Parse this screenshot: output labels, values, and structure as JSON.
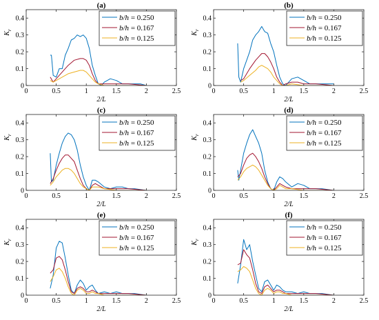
{
  "colors": {
    "s1": "#0072BD",
    "s2": "#A2142F",
    "s3": "#EDB120"
  },
  "chart_data": [
    {
      "type": "line",
      "title": "(a)",
      "xlabel": "2/L",
      "ylabel": "Kr",
      "xlim": [
        0,
        2.5
      ],
      "ylim": [
        0,
        0.45
      ],
      "xticks": [
        "0",
        "0.5",
        "1",
        "1.5",
        "2",
        "2.5"
      ],
      "yticks": [
        "0",
        "0.1",
        "0.2",
        "0.3",
        "0.4"
      ],
      "legend_position": "top-right",
      "series": [
        {
          "name": "b/h = 0.250",
          "color": "#0072BD",
          "x": [
            0.4,
            0.42,
            0.45,
            0.5,
            0.55,
            0.6,
            0.65,
            0.7,
            0.75,
            0.8,
            0.85,
            0.9,
            0.95,
            1.0,
            1.05,
            1.1,
            1.15,
            1.2,
            1.25,
            1.3,
            1.35,
            1.4,
            1.5,
            1.6,
            1.7,
            1.8,
            1.9,
            2.0
          ],
          "y": [
            0.18,
            0.18,
            0.06,
            0.05,
            0.1,
            0.1,
            0.18,
            0.22,
            0.27,
            0.28,
            0.3,
            0.29,
            0.3,
            0.28,
            0.22,
            0.12,
            0.06,
            0.01,
            0.0,
            0.02,
            0.03,
            0.04,
            0.03,
            0.01,
            0.01,
            0.01,
            0.01,
            0.0
          ]
        },
        {
          "name": "b/h = 0.167",
          "color": "#A2142F",
          "x": [
            0.4,
            0.45,
            0.5,
            0.6,
            0.7,
            0.8,
            0.9,
            0.95,
            1.0,
            1.05,
            1.1,
            1.15,
            1.2,
            1.3,
            1.4,
            1.5,
            1.7,
            2.0
          ],
          "y": [
            0.05,
            0.02,
            0.04,
            0.08,
            0.12,
            0.15,
            0.16,
            0.16,
            0.15,
            0.12,
            0.07,
            0.03,
            0.01,
            0.01,
            0.01,
            0.01,
            0.01,
            0.0
          ]
        },
        {
          "name": "b/h = 0.125",
          "color": "#EDB120",
          "x": [
            0.4,
            0.45,
            0.5,
            0.6,
            0.7,
            0.8,
            0.9,
            0.95,
            1.0,
            1.05,
            1.1,
            1.15,
            1.2,
            1.3,
            1.4,
            1.5,
            1.7,
            2.0
          ],
          "y": [
            0.03,
            0.02,
            0.03,
            0.05,
            0.07,
            0.08,
            0.09,
            0.09,
            0.08,
            0.06,
            0.04,
            0.02,
            0.01,
            0.0,
            0.0,
            0.0,
            0.0,
            0.0
          ]
        }
      ]
    },
    {
      "type": "line",
      "title": "(b)",
      "xlabel": "2/L",
      "ylabel": "Kr",
      "xlim": [
        0,
        2.5
      ],
      "ylim": [
        0,
        0.45
      ],
      "xticks": [
        "0",
        "0.5",
        "1",
        "1.5",
        "2",
        "2.5"
      ],
      "yticks": [
        "0",
        "0.1",
        "0.2",
        "0.3",
        "0.4"
      ],
      "legend_position": "top-right",
      "series": [
        {
          "name": "b/h = 0.250",
          "color": "#0072BD",
          "x": [
            0.4,
            0.42,
            0.45,
            0.5,
            0.55,
            0.6,
            0.65,
            0.7,
            0.75,
            0.8,
            0.85,
            0.9,
            0.95,
            1.0,
            1.05,
            1.1,
            1.15,
            1.2,
            1.25,
            1.3,
            1.4,
            1.5,
            1.6,
            1.7,
            1.8,
            1.9,
            2.0
          ],
          "y": [
            0.25,
            0.05,
            0.02,
            0.1,
            0.15,
            0.2,
            0.27,
            0.3,
            0.32,
            0.35,
            0.32,
            0.31,
            0.25,
            0.2,
            0.12,
            0.05,
            0.01,
            0.0,
            0.02,
            0.04,
            0.05,
            0.03,
            0.01,
            0.01,
            0.01,
            0.01,
            0.01
          ]
        },
        {
          "name": "b/h = 0.167",
          "color": "#A2142F",
          "x": [
            0.45,
            0.5,
            0.6,
            0.7,
            0.75,
            0.8,
            0.85,
            0.9,
            0.95,
            1.0,
            1.05,
            1.1,
            1.15,
            1.2,
            1.3,
            1.4,
            1.5,
            1.7,
            2.0
          ],
          "y": [
            0.03,
            0.04,
            0.1,
            0.15,
            0.17,
            0.19,
            0.19,
            0.17,
            0.14,
            0.1,
            0.05,
            0.02,
            0.0,
            0.01,
            0.02,
            0.02,
            0.01,
            0.01,
            0.0
          ]
        },
        {
          "name": "b/h = 0.125",
          "color": "#EDB120",
          "x": [
            0.45,
            0.5,
            0.6,
            0.7,
            0.75,
            0.8,
            0.85,
            0.9,
            0.95,
            1.0,
            1.05,
            1.1,
            1.15,
            1.2,
            1.3,
            1.5,
            2.0
          ],
          "y": [
            0.02,
            0.03,
            0.06,
            0.09,
            0.11,
            0.12,
            0.11,
            0.1,
            0.08,
            0.05,
            0.03,
            0.01,
            0.0,
            0.0,
            0.01,
            0.0,
            0.0
          ]
        }
      ]
    },
    {
      "type": "line",
      "title": "(c)",
      "xlabel": "2/L",
      "ylabel": "Kr",
      "xlim": [
        0,
        2.5
      ],
      "ylim": [
        0,
        0.45
      ],
      "xticks": [
        "0",
        "0.5",
        "1",
        "1.5",
        "2",
        "2.5"
      ],
      "yticks": [
        "0",
        "0.1",
        "0.2",
        "0.3",
        "0.4"
      ],
      "legend_position": "top-right",
      "series": [
        {
          "name": "b/h = 0.250",
          "color": "#0072BD",
          "x": [
            0.4,
            0.42,
            0.45,
            0.5,
            0.55,
            0.6,
            0.65,
            0.7,
            0.75,
            0.8,
            0.85,
            0.9,
            0.95,
            1.0,
            1.05,
            1.1,
            1.15,
            1.2,
            1.3,
            1.4,
            1.5,
            1.6,
            1.7,
            1.8,
            2.0
          ],
          "y": [
            0.22,
            0.05,
            0.06,
            0.15,
            0.22,
            0.28,
            0.32,
            0.34,
            0.33,
            0.3,
            0.24,
            0.15,
            0.08,
            0.03,
            0.0,
            0.06,
            0.06,
            0.05,
            0.02,
            0.01,
            0.02,
            0.02,
            0.01,
            0.01,
            0.0
          ]
        },
        {
          "name": "b/h = 0.167",
          "color": "#A2142F",
          "x": [
            0.4,
            0.45,
            0.5,
            0.55,
            0.6,
            0.65,
            0.7,
            0.75,
            0.8,
            0.85,
            0.9,
            0.95,
            1.0,
            1.05,
            1.1,
            1.15,
            1.2,
            1.3,
            1.5,
            1.7,
            2.0
          ],
          "y": [
            0.04,
            0.07,
            0.12,
            0.16,
            0.19,
            0.21,
            0.21,
            0.19,
            0.17,
            0.12,
            0.07,
            0.03,
            0.01,
            0.0,
            0.03,
            0.04,
            0.03,
            0.01,
            0.01,
            0.01,
            0.0
          ]
        },
        {
          "name": "b/h = 0.125",
          "color": "#EDB120",
          "x": [
            0.4,
            0.45,
            0.5,
            0.55,
            0.6,
            0.65,
            0.7,
            0.75,
            0.8,
            0.85,
            0.9,
            0.95,
            1.0,
            1.05,
            1.1,
            1.15,
            1.2,
            1.3,
            1.5,
            2.0
          ],
          "y": [
            0.03,
            0.05,
            0.08,
            0.1,
            0.12,
            0.13,
            0.13,
            0.12,
            0.1,
            0.07,
            0.04,
            0.02,
            0.01,
            0.0,
            0.02,
            0.02,
            0.02,
            0.01,
            0.0,
            0.0
          ]
        }
      ]
    },
    {
      "type": "line",
      "title": "(d)",
      "xlabel": "2/L",
      "ylabel": "Kr",
      "xlim": [
        0,
        2.5
      ],
      "ylim": [
        0,
        0.45
      ],
      "xticks": [
        "0",
        "0.5",
        "1",
        "1.5",
        "2",
        "2.5"
      ],
      "yticks": [
        "0",
        "0.1",
        "0.2",
        "0.3",
        "0.4"
      ],
      "legend_position": "top-right",
      "series": [
        {
          "name": "b/h = 0.250",
          "color": "#0072BD",
          "x": [
            0.4,
            0.42,
            0.45,
            0.5,
            0.55,
            0.6,
            0.65,
            0.7,
            0.75,
            0.8,
            0.85,
            0.9,
            0.95,
            1.0,
            1.05,
            1.1,
            1.15,
            1.2,
            1.3,
            1.4,
            1.5,
            1.6,
            1.7,
            1.8,
            2.0
          ],
          "y": [
            0.12,
            0.06,
            0.12,
            0.22,
            0.28,
            0.33,
            0.36,
            0.32,
            0.28,
            0.22,
            0.12,
            0.05,
            0.01,
            0.0,
            0.05,
            0.08,
            0.07,
            0.05,
            0.02,
            0.04,
            0.03,
            0.01,
            0.01,
            0.01,
            0.0
          ]
        },
        {
          "name": "b/h = 0.167",
          "color": "#A2142F",
          "x": [
            0.4,
            0.45,
            0.5,
            0.55,
            0.6,
            0.65,
            0.7,
            0.75,
            0.8,
            0.85,
            0.9,
            0.95,
            1.0,
            1.05,
            1.1,
            1.15,
            1.2,
            1.3,
            1.5,
            1.7,
            2.0
          ],
          "y": [
            0.08,
            0.1,
            0.15,
            0.19,
            0.21,
            0.22,
            0.2,
            0.17,
            0.13,
            0.08,
            0.04,
            0.01,
            0.0,
            0.02,
            0.04,
            0.03,
            0.02,
            0.01,
            0.01,
            0.01,
            0.0
          ]
        },
        {
          "name": "b/h = 0.125",
          "color": "#EDB120",
          "x": [
            0.4,
            0.45,
            0.5,
            0.55,
            0.6,
            0.65,
            0.7,
            0.75,
            0.8,
            0.85,
            0.9,
            0.95,
            1.0,
            1.05,
            1.1,
            1.15,
            1.2,
            1.3,
            1.5,
            2.0
          ],
          "y": [
            0.06,
            0.08,
            0.11,
            0.13,
            0.14,
            0.15,
            0.14,
            0.12,
            0.09,
            0.06,
            0.03,
            0.01,
            0.0,
            0.01,
            0.03,
            0.02,
            0.01,
            0.01,
            0.0,
            0.0
          ]
        }
      ]
    },
    {
      "type": "line",
      "title": "(e)",
      "xlabel": "2/L",
      "ylabel": "Kr",
      "xlim": [
        0,
        2.5
      ],
      "ylim": [
        0,
        0.45
      ],
      "xticks": [
        "0",
        "0.5",
        "1",
        "1.5",
        "2",
        "2.5"
      ],
      "yticks": [
        "0",
        "0.1",
        "0.2",
        "0.3",
        "0.4"
      ],
      "legend_position": "top-right",
      "series": [
        {
          "name": "b/h = 0.250",
          "color": "#0072BD",
          "x": [
            0.4,
            0.45,
            0.5,
            0.55,
            0.6,
            0.65,
            0.7,
            0.75,
            0.8,
            0.85,
            0.9,
            0.95,
            1.0,
            1.05,
            1.1,
            1.15,
            1.2,
            1.3,
            1.4,
            1.5,
            1.6,
            1.7,
            1.8,
            2.0
          ],
          "y": [
            0.04,
            0.12,
            0.28,
            0.32,
            0.31,
            0.22,
            0.12,
            0.03,
            0.01,
            0.06,
            0.09,
            0.07,
            0.03,
            0.05,
            0.06,
            0.03,
            0.01,
            0.02,
            0.01,
            0.02,
            0.01,
            0.01,
            0.01,
            0.0
          ]
        },
        {
          "name": "b/h = 0.167",
          "color": "#A2142F",
          "x": [
            0.4,
            0.45,
            0.5,
            0.55,
            0.6,
            0.65,
            0.7,
            0.75,
            0.8,
            0.85,
            0.9,
            0.95,
            1.0,
            1.05,
            1.1,
            1.15,
            1.2,
            1.3,
            1.5,
            1.7,
            2.0
          ],
          "y": [
            0.13,
            0.15,
            0.22,
            0.23,
            0.21,
            0.15,
            0.08,
            0.02,
            0.01,
            0.04,
            0.05,
            0.04,
            0.02,
            0.02,
            0.03,
            0.02,
            0.01,
            0.01,
            0.01,
            0.01,
            0.0
          ]
        },
        {
          "name": "b/h = 0.125",
          "color": "#EDB120",
          "x": [
            0.4,
            0.45,
            0.5,
            0.55,
            0.6,
            0.65,
            0.7,
            0.75,
            0.8,
            0.85,
            0.9,
            0.95,
            1.0,
            1.05,
            1.1,
            1.15,
            1.2,
            1.3,
            1.5,
            2.0
          ],
          "y": [
            0.08,
            0.11,
            0.15,
            0.16,
            0.14,
            0.1,
            0.05,
            0.01,
            0.0,
            0.03,
            0.04,
            0.03,
            0.01,
            0.01,
            0.02,
            0.01,
            0.01,
            0.0,
            0.0,
            0.0
          ]
        }
      ]
    },
    {
      "type": "line",
      "title": "(f)",
      "xlabel": "2/L",
      "ylabel": "Kr",
      "xlim": [
        0,
        2.5
      ],
      "ylim": [
        0,
        0.45
      ],
      "xticks": [
        "0",
        "0.5",
        "1",
        "1.5",
        "2",
        "2.5"
      ],
      "yticks": [
        "0",
        "0.1",
        "0.2",
        "0.3",
        "0.4"
      ],
      "legend_position": "top-right",
      "series": [
        {
          "name": "b/h = 0.250",
          "color": "#0072BD",
          "x": [
            0.4,
            0.45,
            0.5,
            0.55,
            0.6,
            0.65,
            0.7,
            0.75,
            0.8,
            0.85,
            0.9,
            0.95,
            1.0,
            1.05,
            1.1,
            1.15,
            1.2,
            1.3,
            1.4,
            1.5,
            1.6,
            1.7,
            1.8,
            2.0
          ],
          "y": [
            0.07,
            0.18,
            0.33,
            0.27,
            0.3,
            0.2,
            0.12,
            0.04,
            0.02,
            0.08,
            0.09,
            0.06,
            0.03,
            0.06,
            0.05,
            0.03,
            0.02,
            0.02,
            0.01,
            0.02,
            0.01,
            0.01,
            0.01,
            0.0
          ]
        },
        {
          "name": "b/h = 0.167",
          "color": "#A2142F",
          "x": [
            0.4,
            0.45,
            0.5,
            0.55,
            0.6,
            0.65,
            0.7,
            0.75,
            0.8,
            0.85,
            0.9,
            0.95,
            1.0,
            1.05,
            1.1,
            1.15,
            1.2,
            1.3,
            1.5,
            1.7,
            2.0
          ],
          "y": [
            0.18,
            0.19,
            0.27,
            0.24,
            0.22,
            0.15,
            0.07,
            0.02,
            0.01,
            0.05,
            0.06,
            0.04,
            0.02,
            0.03,
            0.03,
            0.02,
            0.01,
            0.01,
            0.01,
            0.01,
            0.0
          ]
        },
        {
          "name": "b/h = 0.125",
          "color": "#EDB120",
          "x": [
            0.4,
            0.45,
            0.5,
            0.55,
            0.6,
            0.65,
            0.7,
            0.75,
            0.8,
            0.85,
            0.9,
            0.95,
            1.0,
            1.05,
            1.1,
            1.15,
            1.2,
            1.3,
            1.5,
            2.0
          ],
          "y": [
            0.14,
            0.15,
            0.17,
            0.16,
            0.14,
            0.09,
            0.04,
            0.01,
            0.0,
            0.03,
            0.04,
            0.03,
            0.01,
            0.02,
            0.02,
            0.01,
            0.01,
            0.0,
            0.0,
            0.0
          ]
        }
      ]
    }
  ]
}
